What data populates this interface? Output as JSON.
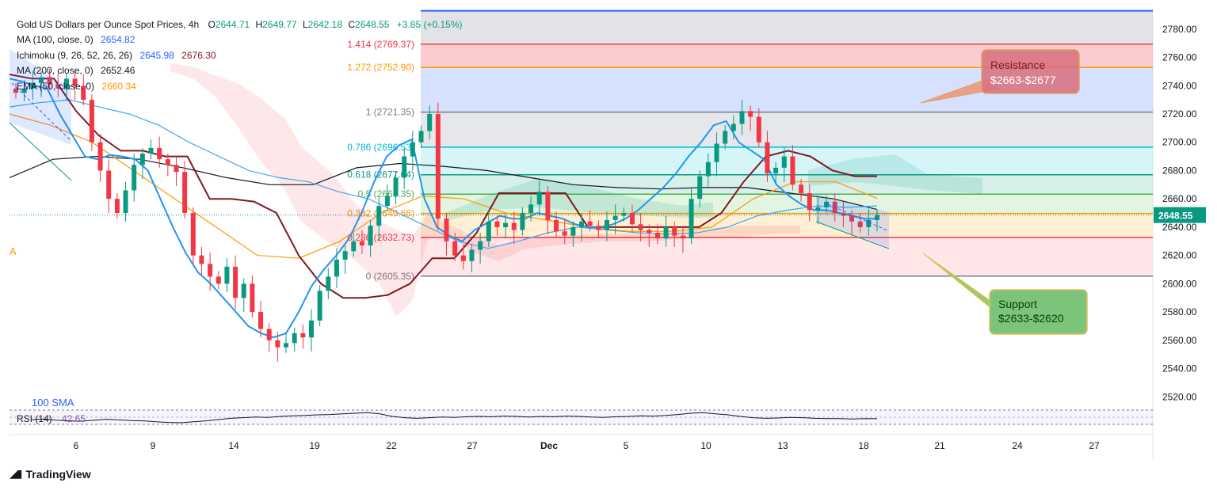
{
  "chart_data": {
    "type": "candlestick",
    "title": "Gold US Dollars per Ounce Spot Prices",
    "interval": "4h",
    "ohlc": {
      "O_label": "O",
      "O": "2644.71",
      "H_label": "H",
      "H": "2649.77",
      "L_label": "L",
      "L": "2642.18",
      "C_label": "C",
      "C": "2648.55",
      "change": "+3.85 (+0.15%)"
    },
    "indicators": [
      {
        "label": "MA (100, close, 0)",
        "values": [
          "2654.82"
        ],
        "colors": [
          "#2962ff"
        ]
      },
      {
        "label": "Ichimoku (9, 26, 52, 26, 26)",
        "values": [
          "2645.98",
          "2676.30"
        ],
        "colors": [
          "#2962ff",
          "#801922"
        ]
      },
      {
        "label": "MA (200, close, 0)",
        "values": [
          "2652.46"
        ],
        "colors": [
          "#131722"
        ]
      },
      {
        "label": "EMA (50, close, 0)",
        "values": [
          "2660.34"
        ],
        "colors": [
          "#ff9800"
        ]
      }
    ],
    "y_ticks": [
      2780,
      2760,
      2740,
      2720,
      2700,
      2680,
      2660,
      2640,
      2620,
      2600,
      2580,
      2560,
      2540,
      2520
    ],
    "ylim": [
      2514,
      2795
    ],
    "x_ticks": [
      "6",
      "9",
      "14",
      "19",
      "22",
      "27",
      "Dec",
      "5",
      "10",
      "13",
      "18",
      "21",
      "24",
      "27"
    ],
    "last_price": "2648.55",
    "fib_levels": [
      {
        "label": "1.414 (2769.37)",
        "value": 2769.37,
        "color": "#f23645"
      },
      {
        "label": "1.272 (2752.90)",
        "value": 2752.9,
        "color": "#ff9800"
      },
      {
        "label": "1 (2721.35)",
        "value": 2721.35,
        "color": "#787b86"
      },
      {
        "label": "0.786 (2696.53)",
        "value": 2696.53,
        "color": "#00bcd4"
      },
      {
        "label": "0.618 (2677.04)",
        "value": 2677.04,
        "color": "#089981"
      },
      {
        "label": "0.5 (2663.35)",
        "value": 2663.35,
        "color": "#4caf50"
      },
      {
        "label": "0.382 (2649.66)",
        "value": 2649.66,
        "color": "#ff9800"
      },
      {
        "label": "0.236 (2632.73)",
        "value": 2632.73,
        "color": "#f23645"
      },
      {
        "label": "0 (2605.35)",
        "value": 2605.35,
        "color": "#787b86"
      }
    ],
    "fib_top": 2793,
    "annotations": [
      {
        "text_line1": "Resistance",
        "text_line2": "$2663-$2677",
        "color": "#f23645"
      },
      {
        "text_line1": "Support",
        "text_line2": "$2633-$2620",
        "color": "#4caf50"
      }
    ],
    "side_labels": {
      "a": "A",
      "sma": "100 SMA"
    },
    "rsi": {
      "label": "RSI (14)",
      "value": "42.65",
      "ylim": [
        0,
        100
      ],
      "values": [
        40,
        42,
        38,
        36,
        35,
        38,
        41,
        39,
        37,
        36,
        33,
        31,
        30,
        33,
        36,
        40,
        44,
        46,
        48,
        47,
        50,
        52,
        53,
        55,
        56,
        58,
        60,
        62,
        58,
        50,
        46,
        44,
        46,
        48,
        47,
        49,
        50,
        49,
        51,
        50,
        48,
        50,
        49,
        51,
        50,
        48,
        47,
        49,
        50,
        52,
        51,
        53,
        56,
        60,
        62,
        58,
        55,
        50,
        46,
        44,
        45,
        47,
        46,
        44,
        43,
        43,
        42,
        43,
        42.65
      ]
    },
    "series": {
      "close": [
        2735,
        2738,
        2742,
        2746,
        2741,
        2738,
        2745,
        2740,
        2730,
        2700,
        2680,
        2660,
        2650,
        2666,
        2684,
        2692,
        2696,
        2688,
        2684,
        2679,
        2650,
        2620,
        2614,
        2605,
        2600,
        2612,
        2590,
        2600,
        2580,
        2568,
        2560,
        2555,
        2558,
        2565,
        2562,
        2574,
        2595,
        2605,
        2617,
        2623,
        2630,
        2627,
        2641,
        2655,
        2662,
        2675,
        2690,
        2700,
        2708,
        2720,
        2646,
        2630,
        2620,
        2616,
        2624,
        2630,
        2644,
        2640,
        2643,
        2638,
        2650,
        2656,
        2665,
        2645,
        2637,
        2634,
        2640,
        2644,
        2641,
        2638,
        2645,
        2648,
        2650,
        2642,
        2638,
        2636,
        2632,
        2640,
        2634,
        2632,
        2660,
        2676,
        2686,
        2699,
        2708,
        2713,
        2722,
        2718,
        2700,
        2678,
        2682,
        2690,
        2670,
        2664,
        2652,
        2654,
        2658,
        2650,
        2648,
        2644,
        2640,
        2645,
        2648.55
      ],
      "tenkan": [
        2745,
        2743,
        2740,
        2738,
        2720,
        2705,
        2690,
        2688,
        2691,
        2690,
        2688,
        2680,
        2660,
        2640,
        2622,
        2608,
        2600,
        2590,
        2580,
        2570,
        2565,
        2562,
        2565,
        2580,
        2598,
        2610,
        2620,
        2632,
        2650,
        2672,
        2690,
        2698,
        2702,
        2660,
        2640,
        2634,
        2630,
        2638,
        2643,
        2648,
        2646,
        2646,
        2650,
        2648,
        2646,
        2642,
        2640,
        2640,
        2642,
        2646,
        2652,
        2660,
        2668,
        2678,
        2690,
        2700,
        2712,
        2715,
        2700,
        2694,
        2688,
        2670,
        2662,
        2656,
        2652,
        2652,
        2650,
        2648,
        2646,
        2646
      ],
      "kijun": [
        2748,
        2745,
        2745,
        2722,
        2705,
        2694,
        2694,
        2690,
        2690,
        2660,
        2660,
        2658,
        2650,
        2620,
        2600,
        2590,
        2590,
        2592,
        2600,
        2618,
        2618,
        2636,
        2664,
        2664,
        2664,
        2664,
        2640,
        2640,
        2640,
        2640,
        2640,
        2640,
        2650,
        2672,
        2690,
        2694,
        2690,
        2680,
        2676,
        2676
      ],
      "ma100": [
        2725,
        2728,
        2730,
        2725,
        2720,
        2712,
        2700,
        2690,
        2680,
        2675,
        2672,
        2665,
        2660,
        2650,
        2640,
        2630,
        2625,
        2630,
        2636,
        2640,
        2638,
        2636,
        2635,
        2636,
        2640,
        2648,
        2652,
        2655,
        2654,
        2655
      ],
      "ma200": [
        2675,
        2688,
        2690,
        2688,
        2682,
        2675,
        2670,
        2670,
        2682,
        2685,
        2683,
        2680,
        2675,
        2670,
        2668,
        2667,
        2668,
        2668,
        2664,
        2660,
        2652.46
      ],
      "ema50": [
        2720,
        2712,
        2700,
        2680,
        2660,
        2640,
        2620,
        2618,
        2630,
        2650,
        2662,
        2660,
        2650,
        2645,
        2640,
        2637,
        2637,
        2640,
        2660,
        2672,
        2672,
        2660.34
      ]
    }
  }
}
